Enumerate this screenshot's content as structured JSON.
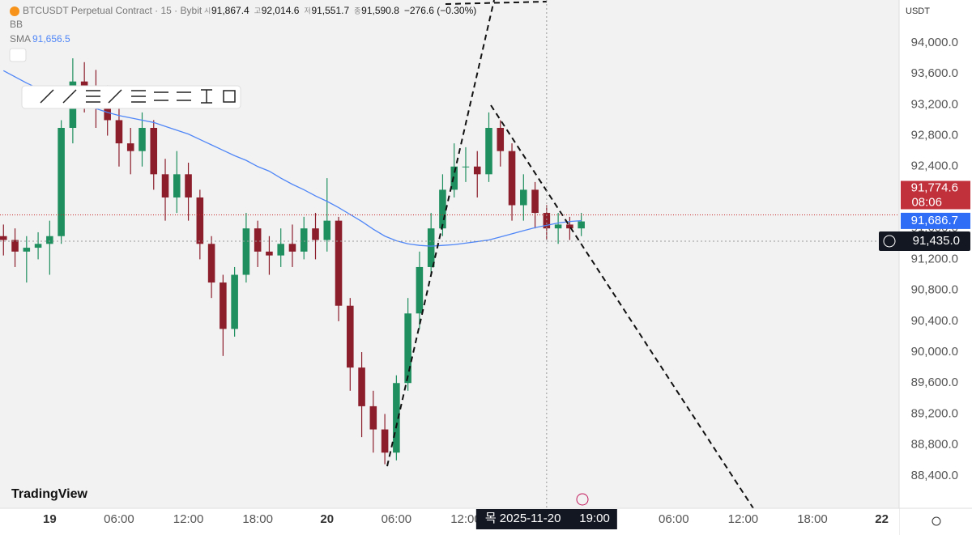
{
  "header": {
    "symbol": "BTCUSDT Perpetual Contract · 15 · Bybit",
    "ohlc": [
      {
        "key": "시",
        "value": "91,867.4"
      },
      {
        "key": "고",
        "value": "92,014.6"
      },
      {
        "key": "저",
        "value": "91,551.7"
      },
      {
        "key": "종",
        "value": "91,590.8"
      }
    ],
    "change": "−276.6 (−0.30%)",
    "indicators": [
      "BB",
      "SMA"
    ],
    "currency": "USDT"
  },
  "logo": "TradingView",
  "chart_data": {
    "type": "candlestick",
    "up_color": "#1f8f5f",
    "down_color": "#8c1d2b",
    "open": [
      91500,
      91450,
      91300,
      91350,
      91400,
      91500,
      92900,
      93500,
      93400,
      93300,
      93000,
      92700,
      92600,
      92900,
      92300,
      92000,
      92300,
      92000,
      91400,
      90900,
      90300,
      91000,
      91600,
      91300,
      91250,
      91400,
      91300,
      91600,
      91450,
      91700,
      90600,
      89800,
      89300,
      89000,
      88700,
      89600,
      90500,
      91100,
      91600,
      92100,
      92400,
      92400,
      92300,
      92900,
      92600,
      91900,
      92100,
      91800,
      91600,
      91650,
      91600
    ],
    "high": [
      91650,
      91600,
      91500,
      91550,
      91700,
      93000,
      93800,
      93750,
      93650,
      93450,
      93200,
      92900,
      93100,
      93000,
      92500,
      92600,
      92450,
      92100,
      91500,
      91000,
      91100,
      91800,
      91700,
      91500,
      91600,
      91650,
      91750,
      91800,
      92250,
      91750,
      90700,
      90000,
      89500,
      89200,
      89700,
      90700,
      91300,
      91800,
      92300,
      92700,
      92650,
      92600,
      93100,
      93000,
      92700,
      92300,
      92200,
      91900,
      91800,
      91750,
      91800
    ],
    "low": [
      91250,
      91100,
      90900,
      91200,
      91000,
      91400,
      92700,
      93100,
      92900,
      92800,
      92400,
      92300,
      92400,
      92100,
      91700,
      91800,
      91700,
      91200,
      90700,
      89950,
      90200,
      90900,
      91100,
      91000,
      91100,
      91100,
      91200,
      91200,
      91300,
      90400,
      89500,
      88900,
      88700,
      88550,
      88600,
      89500,
      90300,
      91000,
      91500,
      92000,
      92200,
      92000,
      92200,
      92400,
      91700,
      91700,
      91600,
      91450,
      91400,
      91450,
      91500
    ],
    "close": [
      91450,
      91300,
      91350,
      91400,
      91500,
      92900,
      93500,
      93400,
      93300,
      93000,
      92700,
      92600,
      92900,
      92300,
      92000,
      92300,
      92000,
      91400,
      90900,
      90300,
      91000,
      91600,
      91300,
      91250,
      91400,
      91300,
      91600,
      91450,
      91700,
      90600,
      89800,
      89300,
      89000,
      88700,
      89600,
      90500,
      91100,
      91600,
      92100,
      92400,
      92400,
      92300,
      92900,
      92600,
      91900,
      92100,
      91800,
      91600,
      91650,
      91600,
      91690
    ],
    "sma": {
      "name": "SMA",
      "color": "#4f86f7",
      "value_label": "91,656.5",
      "values": [
        93640,
        93560,
        93480,
        93410,
        93350,
        93290,
        93230,
        93190,
        93150,
        93100,
        93060,
        93030,
        93000,
        92970,
        92920,
        92870,
        92820,
        92750,
        92680,
        92610,
        92540,
        92480,
        92400,
        92340,
        92250,
        92170,
        92100,
        92020,
        91950,
        91870,
        91780,
        91690,
        91590,
        91500,
        91440,
        91400,
        91380,
        91370,
        91380,
        91390,
        91410,
        91430,
        91450,
        91490,
        91530,
        91570,
        91610,
        91640,
        91670,
        91690,
        91700
      ]
    },
    "xlim": [
      -0.3,
      77.5
    ],
    "xticks": [
      {
        "value": 4,
        "label": "19"
      },
      {
        "value": 10,
        "label": "06:00"
      },
      {
        "value": 16,
        "label": "12:00"
      },
      {
        "value": 22,
        "label": "18:00"
      },
      {
        "value": 28,
        "label": "20"
      },
      {
        "value": 34,
        "label": "06:00"
      },
      {
        "value": 40,
        "label": "12:00"
      },
      {
        "value": 58,
        "label": "06:00"
      },
      {
        "value": 64,
        "label": "12:00"
      },
      {
        "value": 70,
        "label": "18:00"
      },
      {
        "value": 76,
        "label": "22"
      }
    ],
    "ylim": [
      87980,
      94554
    ],
    "yticks": [
      {
        "value": 94000,
        "label": "94,000.0"
      },
      {
        "value": 93600,
        "label": "93,600.0"
      },
      {
        "value": 93200,
        "label": "93,200.0"
      },
      {
        "value": 92800,
        "label": "92,800.0"
      },
      {
        "value": 92400,
        "label": "92,400.0"
      },
      {
        "value": 92000,
        "label": "92,000.0"
      },
      {
        "value": 91600,
        "label": "91,600.0"
      },
      {
        "value": 91200,
        "label": "91,200.0"
      },
      {
        "value": 90800,
        "label": "90,800.0"
      },
      {
        "value": 90400,
        "label": "90,400.0"
      },
      {
        "value": 90000,
        "label": "90,000.0"
      },
      {
        "value": 89600,
        "label": "89,600.0"
      },
      {
        "value": 89200,
        "label": "89,200.0"
      },
      {
        "value": 88800,
        "label": "88,800.0"
      },
      {
        "value": 88400,
        "label": "88,400.0"
      }
    ],
    "last_price": {
      "value": 91774.6,
      "label": "91,774.6",
      "countdown": "08:06"
    },
    "sma_price": {
      "value": 91686.7,
      "label": "91,686.7"
    },
    "crosshair": {
      "x": 47,
      "price": {
        "value": 91435,
        "label": "91,435.0"
      },
      "date": "목 2025-11-20",
      "time": "19:00"
    }
  }
}
